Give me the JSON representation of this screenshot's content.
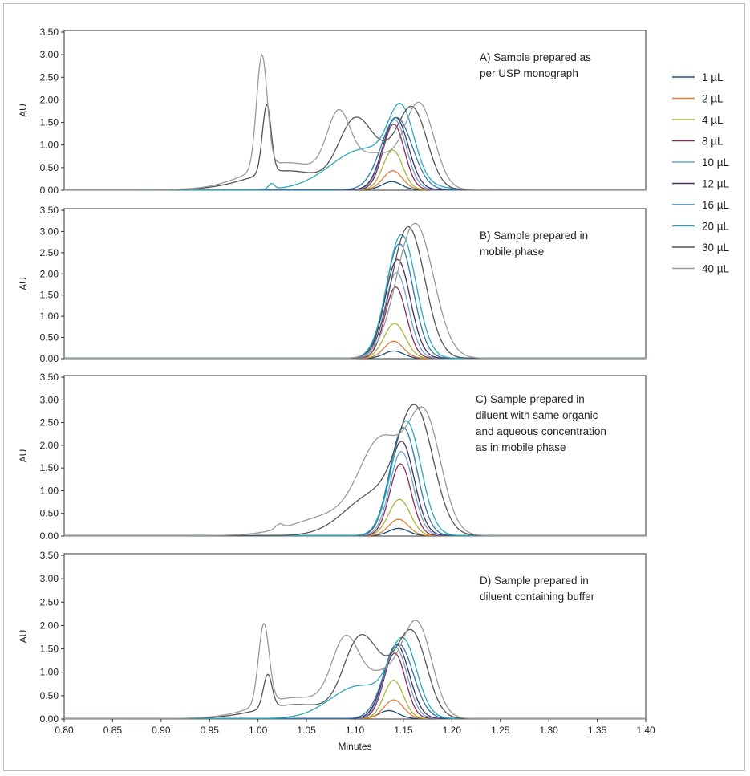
{
  "chart_data": {
    "type": "line",
    "x_label": "Minutes",
    "y_label": "AU",
    "x_range": [
      0.8,
      1.4
    ],
    "x_ticks": [
      "0.80",
      "0.85",
      "0.90",
      "0.95",
      "1.00",
      "1.05",
      "1.10",
      "1.15",
      "1.20",
      "1.25",
      "1.30",
      "1.35",
      "1.40"
    ],
    "y_range": [
      0,
      3.5
    ],
    "y_ticks": [
      "0.00",
      "0.50",
      "1.00",
      "1.50",
      "2.00",
      "2.50",
      "3.00",
      "3.50"
    ],
    "legend": {
      "placement": "right",
      "entries": [
        {
          "name": "1 µL",
          "color": "#1f4e79"
        },
        {
          "name": "2 µL",
          "color": "#e07b39"
        },
        {
          "name": "4 µL",
          "color": "#a8b539"
        },
        {
          "name": "8 µL",
          "color": "#8b2a5a"
        },
        {
          "name": "10 µL",
          "color": "#6aa6cf"
        },
        {
          "name": "12 µL",
          "color": "#4a2d5a"
        },
        {
          "name": "16 µL",
          "color": "#2a7ab0"
        },
        {
          "name": "20 µL",
          "color": "#2aa9b5"
        },
        {
          "name": "30 µL",
          "color": "#555555"
        },
        {
          "name": "40 µL",
          "color": "#9a9a9a"
        }
      ]
    },
    "panels": [
      {
        "title_lines": [
          "A) Sample prepared as",
          "per USP monograph"
        ],
        "series": [
          {
            "name": "1 µL",
            "peaks": [
              {
                "x": 1.138,
                "h": 0.18,
                "w": 0.01
              }
            ]
          },
          {
            "name": "2 µL",
            "peaks": [
              {
                "x": 1.139,
                "h": 0.42,
                "w": 0.01
              }
            ]
          },
          {
            "name": "4 µL",
            "peaks": [
              {
                "x": 1.139,
                "h": 0.88,
                "w": 0.01
              }
            ]
          },
          {
            "name": "8 µL",
            "peaks": [
              {
                "x": 1.14,
                "h": 1.45,
                "w": 0.011
              }
            ]
          },
          {
            "name": "10 µL",
            "peaks": [
              {
                "x": 1.141,
                "h": 1.55,
                "w": 0.012
              }
            ]
          },
          {
            "name": "12 µL",
            "peaks": [
              {
                "x": 1.142,
                "h": 1.6,
                "w": 0.013
              }
            ]
          },
          {
            "name": "16 µL",
            "peaks": [
              {
                "x": 1.143,
                "h": 1.6,
                "w": 0.016
              }
            ]
          },
          {
            "name": "20 µL",
            "peaks": [
              {
                "x": 1.014,
                "h": 0.12,
                "w": 0.003
              },
              {
                "x": 1.11,
                "h": 0.9,
                "w": 0.035
              },
              {
                "x": 1.148,
                "h": 1.4,
                "w": 0.013
              }
            ]
          },
          {
            "name": "30 µL",
            "peaks": [
              {
                "x": 1.009,
                "h": 1.52,
                "w": 0.0045
              },
              {
                "x": 1.03,
                "h": 0.42,
                "w": 0.04
              },
              {
                "x": 1.098,
                "h": 1.2,
                "w": 0.016
              },
              {
                "x": 1.125,
                "h": 0.7,
                "w": 0.02
              },
              {
                "x": 1.16,
                "h": 1.68,
                "w": 0.015
              }
            ]
          },
          {
            "name": "40 µL",
            "peaks": [
              {
                "x": 1.004,
                "h": 2.5,
                "w": 0.0055
              },
              {
                "x": 1.03,
                "h": 0.6,
                "w": 0.04
              },
              {
                "x": 1.083,
                "h": 1.3,
                "w": 0.012
              },
              {
                "x": 1.122,
                "h": 0.75,
                "w": 0.025
              },
              {
                "x": 1.167,
                "h": 1.78,
                "w": 0.015
              }
            ]
          }
        ]
      },
      {
        "title_lines": [
          "B) Sample prepared in",
          "mobile phase"
        ],
        "series": [
          {
            "name": "1 µL",
            "peaks": [
              {
                "x": 1.14,
                "h": 0.17,
                "w": 0.01
              }
            ]
          },
          {
            "name": "2 µL",
            "peaks": [
              {
                "x": 1.14,
                "h": 0.4,
                "w": 0.01
              }
            ]
          },
          {
            "name": "4 µL",
            "peaks": [
              {
                "x": 1.141,
                "h": 0.82,
                "w": 0.011
              }
            ]
          },
          {
            "name": "8 µL",
            "peaks": [
              {
                "x": 1.142,
                "h": 1.68,
                "w": 0.011
              }
            ]
          },
          {
            "name": "10 µL",
            "peaks": [
              {
                "x": 1.143,
                "h": 2.02,
                "w": 0.012
              }
            ]
          },
          {
            "name": "12 µL",
            "peaks": [
              {
                "x": 1.144,
                "h": 2.33,
                "w": 0.013
              }
            ]
          },
          {
            "name": "16 µL",
            "peaks": [
              {
                "x": 1.146,
                "h": 2.7,
                "w": 0.014
              }
            ]
          },
          {
            "name": "20 µL",
            "peaks": [
              {
                "x": 1.148,
                "h": 2.92,
                "w": 0.015
              }
            ]
          },
          {
            "name": "30 µL",
            "peaks": [
              {
                "x": 1.155,
                "h": 3.1,
                "w": 0.017
              }
            ]
          },
          {
            "name": "40 µL",
            "peaks": [
              {
                "x": 1.162,
                "h": 3.18,
                "w": 0.019
              }
            ]
          }
        ]
      },
      {
        "title_lines": [
          "C) Sample prepared in",
          "diluent with same organic",
          "and aqueous concentration",
          "as in mobile phase"
        ],
        "series": [
          {
            "name": "1 µL",
            "peaks": [
              {
                "x": 1.145,
                "h": 0.16,
                "w": 0.01
              }
            ]
          },
          {
            "name": "2 µL",
            "peaks": [
              {
                "x": 1.145,
                "h": 0.36,
                "w": 0.01
              }
            ]
          },
          {
            "name": "4 µL",
            "peaks": [
              {
                "x": 1.146,
                "h": 0.8,
                "w": 0.011
              }
            ]
          },
          {
            "name": "8 µL",
            "peaks": [
              {
                "x": 1.147,
                "h": 1.58,
                "w": 0.011
              }
            ]
          },
          {
            "name": "10 µL",
            "peaks": [
              {
                "x": 1.148,
                "h": 1.85,
                "w": 0.012
              }
            ]
          },
          {
            "name": "12 µL",
            "peaks": [
              {
                "x": 1.148,
                "h": 2.08,
                "w": 0.013
              }
            ]
          },
          {
            "name": "16 µL",
            "peaks": [
              {
                "x": 1.15,
                "h": 2.38,
                "w": 0.014
              }
            ]
          },
          {
            "name": "20 µL",
            "peaks": [
              {
                "x": 1.153,
                "h": 2.53,
                "w": 0.015
              }
            ]
          },
          {
            "name": "30 µL",
            "peaks": [
              {
                "x": 1.12,
                "h": 0.9,
                "w": 0.03
              },
              {
                "x": 1.163,
                "h": 2.55,
                "w": 0.018
              }
            ]
          },
          {
            "name": "40 µL",
            "peaks": [
              {
                "x": 1.022,
                "h": 0.1,
                "w": 0.004
              },
              {
                "x": 1.08,
                "h": 0.45,
                "w": 0.04
              },
              {
                "x": 1.128,
                "h": 1.9,
                "w": 0.022
              },
              {
                "x": 1.172,
                "h": 2.5,
                "w": 0.017
              }
            ]
          }
        ]
      },
      {
        "title_lines": [
          "D) Sample prepared in",
          "diluent containing buffer"
        ],
        "series": [
          {
            "name": "1 µL",
            "peaks": [
              {
                "x": 1.135,
                "h": 0.17,
                "w": 0.01
              }
            ]
          },
          {
            "name": "2 µL",
            "peaks": [
              {
                "x": 1.14,
                "h": 0.4,
                "w": 0.01
              }
            ]
          },
          {
            "name": "4 µL",
            "peaks": [
              {
                "x": 1.14,
                "h": 0.82,
                "w": 0.01
              }
            ]
          },
          {
            "name": "8 µL",
            "peaks": [
              {
                "x": 1.141,
                "h": 1.4,
                "w": 0.011
              }
            ]
          },
          {
            "name": "10 µL",
            "peaks": [
              {
                "x": 1.142,
                "h": 1.52,
                "w": 0.012
              }
            ]
          },
          {
            "name": "12 µL",
            "peaks": [
              {
                "x": 1.143,
                "h": 1.58,
                "w": 0.013
              }
            ]
          },
          {
            "name": "16 µL",
            "peaks": [
              {
                "x": 1.145,
                "h": 1.6,
                "w": 0.015
              }
            ]
          },
          {
            "name": "20 µL",
            "peaks": [
              {
                "x": 1.105,
                "h": 0.7,
                "w": 0.03
              },
              {
                "x": 1.15,
                "h": 1.5,
                "w": 0.014
              }
            ]
          },
          {
            "name": "30 µL",
            "peaks": [
              {
                "x": 1.01,
                "h": 0.72,
                "w": 0.0045
              },
              {
                "x": 1.04,
                "h": 0.3,
                "w": 0.04
              },
              {
                "x": 1.103,
                "h": 1.3,
                "w": 0.016
              },
              {
                "x": 1.128,
                "h": 0.8,
                "w": 0.02
              },
              {
                "x": 1.16,
                "h": 1.65,
                "w": 0.015
              }
            ]
          },
          {
            "name": "40 µL",
            "peaks": [
              {
                "x": 1.006,
                "h": 1.72,
                "w": 0.0055
              },
              {
                "x": 1.04,
                "h": 0.45,
                "w": 0.04
              },
              {
                "x": 1.09,
                "h": 1.4,
                "w": 0.014
              },
              {
                "x": 1.13,
                "h": 0.9,
                "w": 0.022
              },
              {
                "x": 1.165,
                "h": 1.82,
                "w": 0.015
              }
            ]
          }
        ]
      }
    ]
  }
}
